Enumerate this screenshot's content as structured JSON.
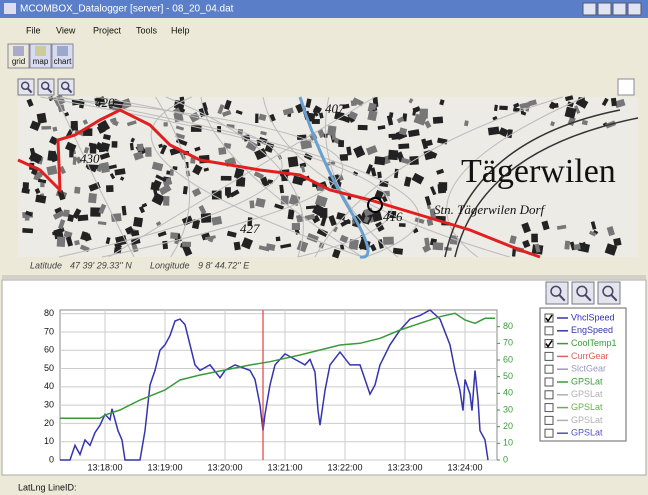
{
  "window": {
    "title": "MCOMBOX_Datalogger [server] - 08_20_04.dat"
  },
  "menu": [
    "File",
    "View",
    "Project",
    "Tools",
    "Help"
  ],
  "toolbar": [
    "grid",
    "map",
    "chart"
  ],
  "map": {
    "labels": [
      "420",
      "430",
      "407",
      "427",
      "416"
    ],
    "place": "Tägerwilen",
    "station": "Stn. Tägerwilen Dorf",
    "latitude_label": "Latitude",
    "latitude": "47 39' 29.33'' N",
    "longitude_label": "Longitude",
    "longitude": "9 8' 44.72'' E"
  },
  "status": "LatLng LineID:",
  "chart_data": {
    "type": "line",
    "xlim": [
      "13:17:15",
      "13:24:32"
    ],
    "xticks": [
      "13:18:00",
      "13:19:00",
      "13:20:00",
      "13:21:00",
      "13:22:00",
      "13:23:00",
      "13:24:00"
    ],
    "ylim": [
      0,
      82
    ],
    "yticks": [
      0,
      10,
      20,
      30,
      40,
      50,
      60,
      70,
      80
    ],
    "y2lim": [
      0,
      90
    ],
    "y2ticks": [
      0,
      10,
      20,
      30,
      40,
      50,
      60,
      70,
      80
    ],
    "y2color": "#3a9a3a",
    "grid": true,
    "cursor": "13:20:38",
    "cursor_color": "#e04040",
    "series": [
      {
        "name": "VhclSpeed",
        "color": "#3434b0",
        "checked": true,
        "x": [
          "13:17:15",
          "13:17:25",
          "13:17:30",
          "13:17:35",
          "13:17:40",
          "13:17:45",
          "13:17:50",
          "13:17:55",
          "13:18:00",
          "13:18:05",
          "13:18:07",
          "13:18:13",
          "13:18:17",
          "13:18:20",
          "13:18:35",
          "13:18:40",
          "13:18:45",
          "13:18:50",
          "13:18:55",
          "13:19:00",
          "13:19:05",
          "13:19:10",
          "13:19:15",
          "13:19:20",
          "13:19:25",
          "13:19:30",
          "13:19:35",
          "13:19:45",
          "13:19:55",
          "13:20:00",
          "13:20:10",
          "13:20:25",
          "13:20:30",
          "13:20:35",
          "13:20:38",
          "13:20:40",
          "13:20:45",
          "13:20:50",
          "13:21:00",
          "13:21:10",
          "13:21:20",
          "13:21:25",
          "13:21:30",
          "13:21:33",
          "13:21:35",
          "13:21:40",
          "13:21:45",
          "13:21:55",
          "13:22:05",
          "13:22:15",
          "13:22:20",
          "13:22:25",
          "13:22:30",
          "13:22:35",
          "13:22:45",
          "13:22:55",
          "13:23:05",
          "13:23:15",
          "13:23:25",
          "13:23:35",
          "13:23:45",
          "13:23:50",
          "13:23:55",
          "13:23:58",
          "13:24:00",
          "13:24:05",
          "13:24:07",
          "13:24:10",
          "13:24:13",
          "13:24:15",
          "13:24:20",
          "13:24:23"
        ],
        "values": [
          0,
          0,
          8,
          3,
          11,
          8,
          15,
          19,
          25,
          22,
          28,
          16,
          11,
          0,
          0,
          16,
          41,
          49,
          60,
          63,
          68,
          76,
          77,
          74,
          63,
          52,
          49,
          52,
          45,
          49,
          52,
          49,
          44,
          30,
          16,
          25,
          41,
          52,
          58,
          55,
          52,
          55,
          48,
          27,
          19,
          38,
          52,
          59,
          52,
          52,
          44,
          36,
          41,
          52,
          63,
          71,
          77,
          79,
          82,
          77,
          63,
          49,
          38,
          27,
          44,
          36,
          27,
          49,
          33,
          16,
          11,
          0
        ]
      },
      {
        "name": "EngSpeed",
        "color": "#3434b0",
        "checked": false
      },
      {
        "name": "CoolTemp1",
        "color": "#3a9a3a",
        "checked": true,
        "axis": "y2",
        "x": [
          "13:17:15",
          "13:17:55",
          "13:18:00",
          "13:18:15",
          "13:18:35",
          "13:19:00",
          "13:19:15",
          "13:19:35",
          "13:20:00",
          "13:20:25",
          "13:20:45",
          "13:21:00",
          "13:21:15",
          "13:21:35",
          "13:21:55",
          "13:22:15",
          "13:22:35",
          "13:22:55",
          "13:23:15",
          "13:23:35",
          "13:23:50",
          "13:24:00",
          "13:24:10",
          "13:24:20",
          "13:24:30"
        ],
        "values": [
          25,
          25,
          27,
          30,
          36,
          42,
          48,
          51,
          54,
          57,
          59,
          61,
          63,
          66,
          69,
          70,
          73,
          78,
          82,
          86,
          88,
          84,
          82,
          85,
          85
        ]
      },
      {
        "name": "CurrGear",
        "color": "#e06060",
        "checked": false
      },
      {
        "name": "SlctGear",
        "color": "#9a9ac0",
        "checked": false
      },
      {
        "name": "GPSLat",
        "color": "#3a9a3a",
        "checked": false
      },
      {
        "name": "GPSLat",
        "color": "#b0b0b0",
        "checked": false
      },
      {
        "name": "GPSLat",
        "color": "#6ab04a",
        "checked": false
      },
      {
        "name": "GPSLat",
        "color": "#b0b0b0",
        "checked": false
      },
      {
        "name": "GPSLat",
        "color": "#5050c0",
        "checked": false
      }
    ]
  }
}
